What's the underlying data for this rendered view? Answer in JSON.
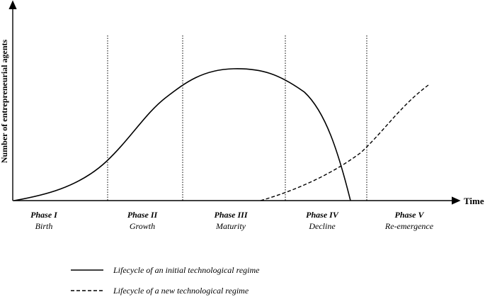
{
  "axes": {
    "ylabel": "Number of entrepreneurial agents",
    "xlabel": "Time"
  },
  "phases": [
    {
      "name": "Phase I",
      "label": "Birth"
    },
    {
      "name": "Phase II",
      "label": "Growth"
    },
    {
      "name": "Phase III",
      "label": "Maturity"
    },
    {
      "name": "Phase IV",
      "label": "Decline"
    },
    {
      "name": "Phase V",
      "label": "Re-emergence"
    }
  ],
  "legend": [
    {
      "label": "Lifecycle of an initial technological regime",
      "style": "solid"
    },
    {
      "label": "Lifecycle of a new technological regime",
      "style": "dashed"
    }
  ],
  "colors": {
    "ink": "#000000",
    "background": "#ffffff"
  }
}
